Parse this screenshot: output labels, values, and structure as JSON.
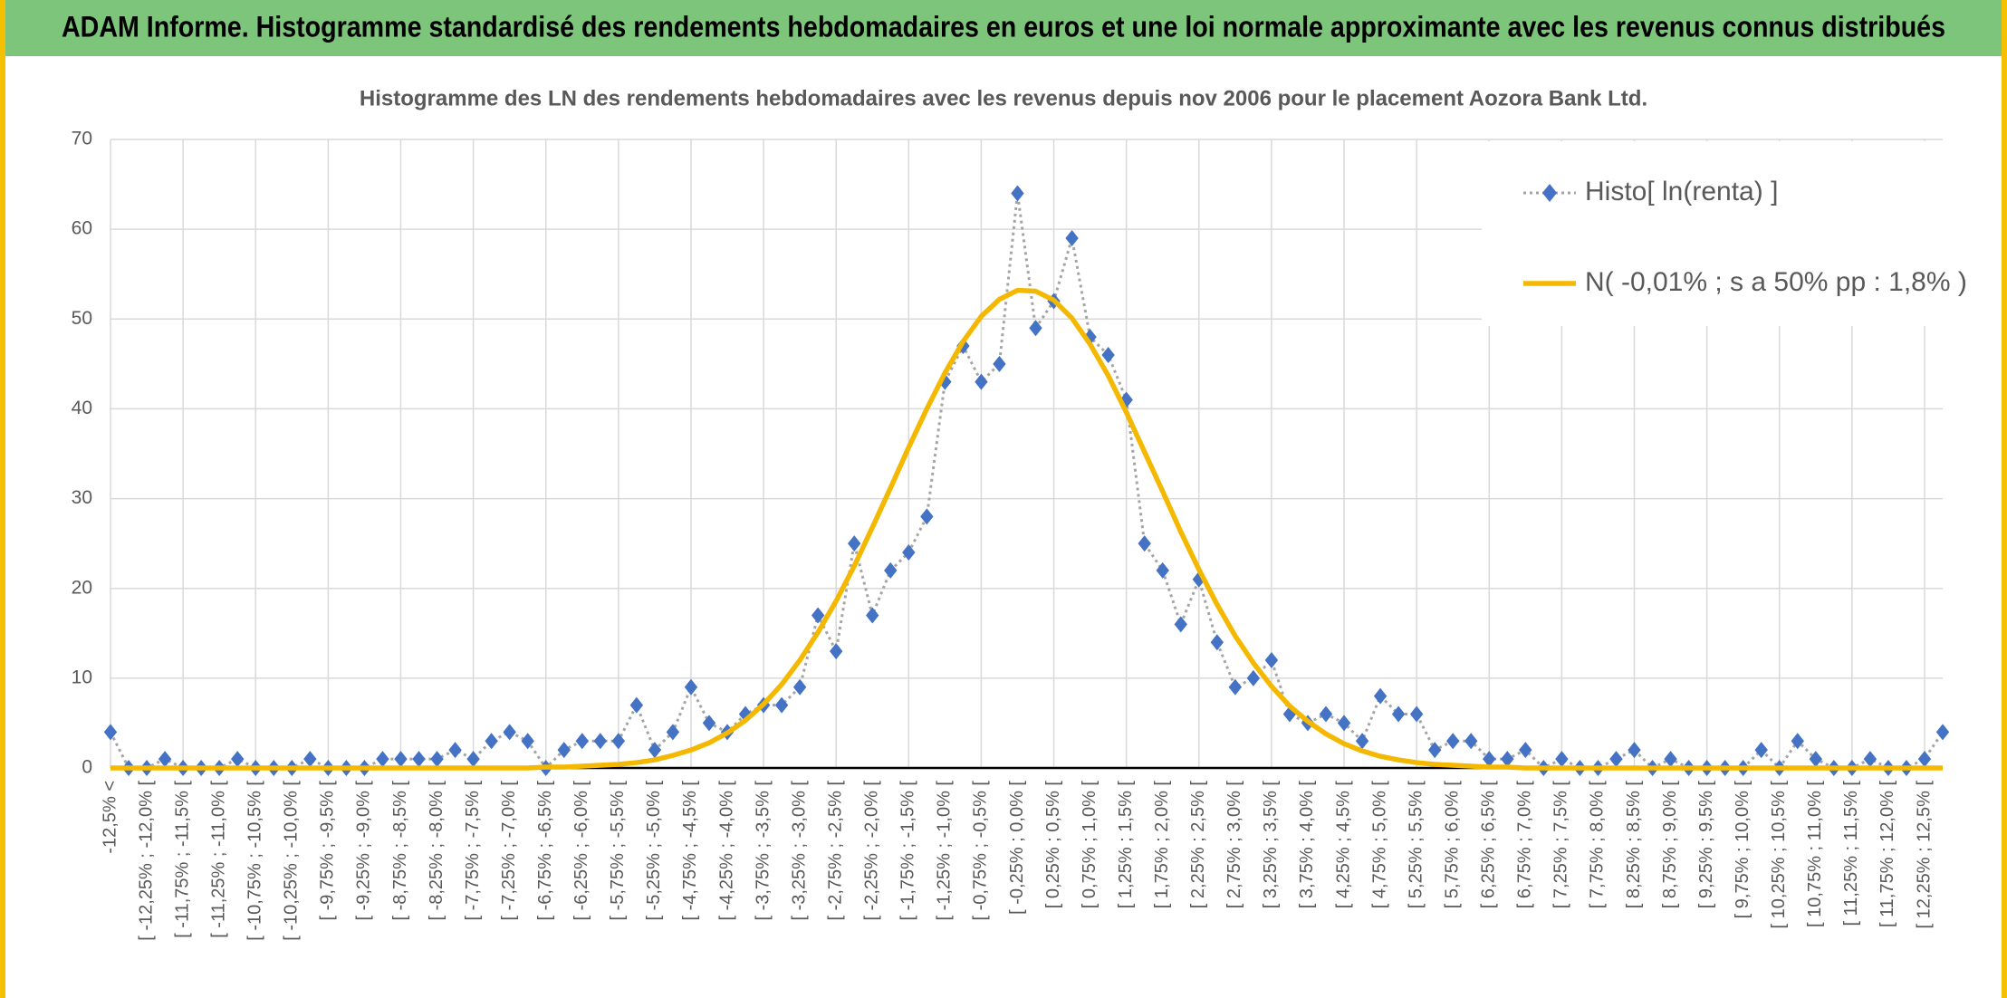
{
  "header": {
    "title": "ADAM Informe. Histogramme standardisé des rendements hebdomadaires en euros et une loi normale approximante avec les revenus connus distribués"
  },
  "chart_data": {
    "type": "line",
    "title": "Histogramme des LN des rendements hebdomadaires avec les revenus depuis nov 2006 pour le placement Aozora Bank Ltd.",
    "categories": [
      "-12,5% <",
      null,
      "[ -12,25% ; -12,0% [",
      null,
      "[ -11,75% ; -11,5% [",
      null,
      "[ -11,25% ; -11,0% [",
      null,
      "[ -10,75% ; -10,5% [",
      null,
      "[ -10,25% ; -10,0% [",
      null,
      "[ -9,75% ; -9,5% [",
      null,
      "[ -9,25% ; -9,0% [",
      null,
      "[ -8,75% ; -8,5% [",
      null,
      "[ -8,25% ; -8,0% [",
      null,
      "[ -7,75% ; -7,5% [",
      null,
      "[ -7,25% ; -7,0% [",
      null,
      "[ -6,75% ; -6,5% [",
      null,
      "[ -6,25% ; -6,0% [",
      null,
      "[ -5,75% ; -5,5% [",
      null,
      "[ -5,25% ; -5,0% [",
      null,
      "[ -4,75% ; -4,5% [",
      null,
      "[ -4,25% ; -4,0% [",
      null,
      "[ -3,75% ; -3,5% [",
      null,
      "[ -3,25% ; -3,0% [",
      null,
      "[ -2,75% ; -2,5% [",
      null,
      "[ -2,25% ; -2,0% [",
      null,
      "[ -1,75% ; -1,5% [",
      null,
      "[ -1,25% ; -1,0% [",
      null,
      "[ -0,75% ; -0,5% [",
      null,
      "[ -0,25% ; 0,0% [",
      null,
      "[ 0,25% ; 0,5% [",
      null,
      "[ 0,75% ; 1,0% [",
      null,
      "[ 1,25% ; 1,5% [",
      null,
      "[ 1,75% ; 2,0% [",
      null,
      "[ 2,25% ; 2,5% [",
      null,
      "[ 2,75% ; 3,0% [",
      null,
      "[ 3,25% ; 3,5% [",
      null,
      "[ 3,75% ; 4,0% [",
      null,
      "[ 4,25% ; 4,5% [",
      null,
      "[ 4,75% ; 5,0% [",
      null,
      "[ 5,25% ; 5,5% [",
      null,
      "[ 5,75% ; 6,0% [",
      null,
      "[ 6,25% ; 6,5% [",
      null,
      "[ 6,75% ; 7,0% [",
      null,
      "[ 7,25% ; 7,5% [",
      null,
      "[ 7,75% ; 8,0% [",
      null,
      "[ 8,25% ; 8,5% [",
      null,
      "[ 8,75% ; 9,0% [",
      null,
      "[ 9,25% ; 9,5% [",
      null,
      "[ 9,75% ; 10,0% [",
      null,
      "[ 10,25% ; 10,5% [",
      null,
      "[ 10,75% ; 11,0% [",
      null,
      "[ 11,25% ; 11,5% [",
      null,
      "[ 11,75% ; 12,0% [",
      null,
      "[ 12,25% ; 12,5% [",
      null
    ],
    "series": [
      {
        "name": "Histo[ ln(renta) ]",
        "color": "#4472c4",
        "line_color": "#a5a5a5",
        "marker": "diamond",
        "dash": "dotted",
        "values": [
          4,
          0,
          0,
          1,
          0,
          0,
          0,
          1,
          0,
          0,
          0,
          1,
          0,
          0,
          0,
          1,
          1,
          1,
          1,
          2,
          1,
          3,
          4,
          3,
          0,
          2,
          3,
          3,
          3,
          7,
          2,
          4,
          9,
          5,
          4,
          6,
          7,
          7,
          9,
          17,
          13,
          25,
          17,
          22,
          24,
          28,
          43,
          47,
          43,
          45,
          64,
          49,
          52,
          59,
          48,
          46,
          41,
          25,
          22,
          16,
          21,
          14,
          9,
          10,
          12,
          6,
          5,
          6,
          5,
          3,
          8,
          6,
          6,
          2,
          3,
          3,
          1,
          1,
          2,
          0,
          1,
          0,
          0,
          1,
          2,
          0,
          1,
          0,
          0,
          0,
          0,
          2,
          0,
          3,
          1,
          0,
          0,
          1,
          0,
          0,
          1,
          4
        ]
      },
      {
        "name": "N( -0,01% ; s a 50% pp : 1,8% )",
        "color": "#f5b800",
        "marker": "none",
        "dash": "solid",
        "values": [
          0,
          0,
          0,
          0,
          0,
          0,
          0,
          0,
          0,
          0,
          0,
          0,
          0,
          0,
          0,
          0,
          0,
          0,
          0,
          0,
          0,
          0,
          0,
          0,
          0.1,
          0.1,
          0.2,
          0.3,
          0.4,
          0.6,
          0.9,
          1.4,
          2.0,
          2.8,
          3.9,
          5.3,
          7.1,
          9.3,
          12.0,
          15.1,
          18.6,
          22.5,
          26.8,
          31.2,
          35.7,
          40.0,
          44.0,
          47.5,
          50.3,
          52.2,
          53.2,
          53.1,
          52.1,
          50.1,
          47.2,
          43.7,
          39.6,
          35.2,
          30.8,
          26.3,
          22.1,
          18.2,
          14.7,
          11.7,
          9.1,
          6.9,
          5.2,
          3.8,
          2.7,
          1.9,
          1.3,
          0.9,
          0.6,
          0.4,
          0.3,
          0.2,
          0.1,
          0.1,
          0,
          0,
          0,
          0,
          0,
          0,
          0,
          0,
          0,
          0,
          0,
          0,
          0,
          0,
          0,
          0,
          0,
          0,
          0,
          0,
          0,
          0,
          0,
          0
        ]
      }
    ],
    "ylim": [
      0,
      70
    ],
    "yticks": [
      0,
      10,
      20,
      30,
      40,
      50,
      60,
      70
    ],
    "grid": true,
    "legend": "top-right"
  }
}
